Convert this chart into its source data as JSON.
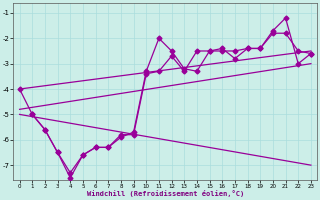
{
  "bg_color": "#cceee8",
  "line_color": "#990099",
  "grid_color": "#aadddd",
  "xlabel": "Windchill (Refroidissement éolien,°C)",
  "xlim": [
    -0.5,
    23.5
  ],
  "ylim": [
    -7.6,
    -0.6
  ],
  "yticks": [
    -7,
    -6,
    -5,
    -4,
    -3,
    -2,
    -1
  ],
  "xticks": [
    0,
    1,
    2,
    3,
    4,
    5,
    6,
    7,
    8,
    9,
    10,
    11,
    12,
    13,
    14,
    15,
    16,
    17,
    18,
    19,
    20,
    21,
    22,
    23
  ],
  "series1_x": [
    0,
    1,
    2,
    3,
    4,
    5,
    6,
    7,
    8,
    9,
    10,
    11,
    12,
    13,
    14,
    15,
    16,
    17,
    18,
    19,
    20,
    21,
    22,
    23
  ],
  "series1_y": [
    -4.0,
    -5.0,
    -5.6,
    -6.5,
    -7.3,
    -6.6,
    -6.3,
    -6.3,
    -5.9,
    -5.7,
    -3.3,
    -2.0,
    -2.5,
    -3.2,
    -3.3,
    -2.5,
    -2.4,
    -2.8,
    -2.4,
    -2.4,
    -1.7,
    -1.2,
    -3.0,
    -2.6
  ],
  "series2_x": [
    1,
    2,
    3,
    4,
    5,
    6,
    7,
    8,
    9,
    10,
    11,
    12,
    13,
    14,
    15,
    16,
    17,
    18,
    19,
    20,
    21,
    22,
    23
  ],
  "series2_y": [
    -5.0,
    -5.6,
    -6.5,
    -7.5,
    -6.6,
    -6.3,
    -6.3,
    -5.8,
    -5.8,
    -3.4,
    -3.3,
    -2.7,
    -3.3,
    -2.5,
    -2.5,
    -2.5,
    -2.5,
    -2.4,
    -2.4,
    -1.8,
    -1.8,
    -2.5,
    -2.6
  ],
  "trend1_x": [
    0,
    23
  ],
  "trend1_y": [
    -4.0,
    -2.5
  ],
  "trend2_x": [
    0,
    23
  ],
  "trend2_y": [
    -4.8,
    -3.0
  ],
  "trend3_x": [
    0,
    23
  ],
  "trend3_y": [
    -5.0,
    -7.0
  ],
  "marker": "D",
  "markersize": 2.5,
  "linewidth": 0.9
}
